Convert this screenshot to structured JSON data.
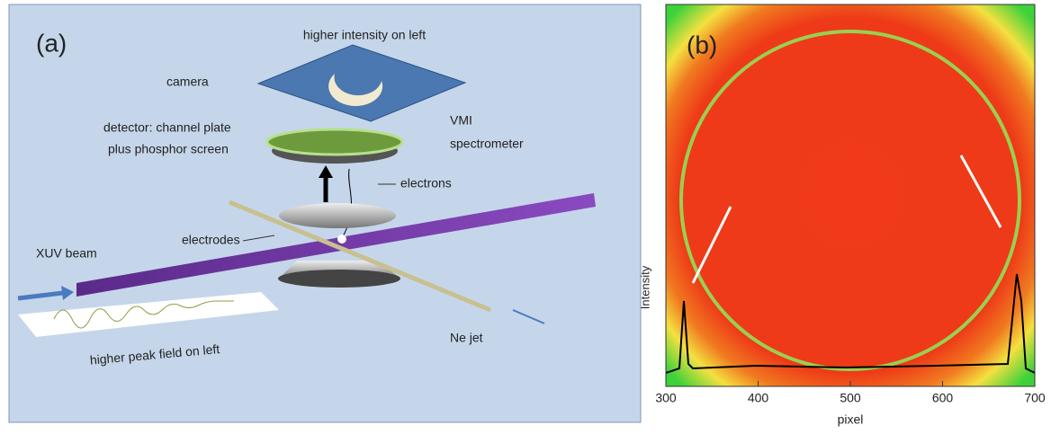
{
  "panel_a": {
    "label": "(a)",
    "labels": {
      "top": "higher intensity on left",
      "camera": "camera",
      "detector_1": "detector: channel plate",
      "detector_2": "plus phosphor screen",
      "vmi_1": "VMI",
      "vmi_2": "spectrometer",
      "electrons": "electrons",
      "electrodes": "electrodes",
      "beam": "XUV beam",
      "field": "higher peak field on left",
      "jet": "Ne jet"
    }
  },
  "panel_b": {
    "label": "(b)",
    "x_label": "pixel",
    "y_label": "Intensity",
    "xlim": [
      300,
      700
    ],
    "xticks": [
      300,
      400,
      500,
      600,
      700
    ]
  }
}
